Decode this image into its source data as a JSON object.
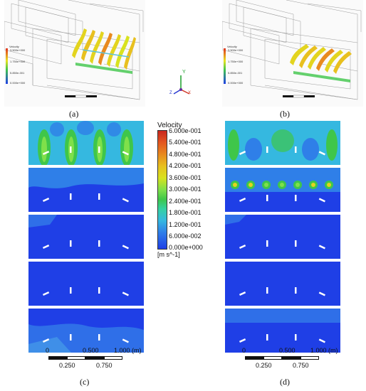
{
  "figure": {
    "panels": [
      {
        "id": "a",
        "label": "(a)"
      },
      {
        "id": "b",
        "label": "(b)"
      },
      {
        "id": "c",
        "label": "(c)"
      },
      {
        "id": "d",
        "label": "(d)"
      }
    ],
    "colorbar": {
      "title": "Velocity",
      "ticks": [
        "6.000e-001",
        "5.400e-001",
        "4.800e-001",
        "4.200e-001",
        "3.600e-001",
        "3.000e-001",
        "2.400e-001",
        "1.800e-001",
        "1.200e-001",
        "6.000e-002",
        "0.000e+000"
      ],
      "unit": "[m s^-1]"
    },
    "scale_bar": {
      "top_labels": [
        "0",
        "0.500",
        "1.000 (m)"
      ],
      "bottom_labels": [
        "0.250",
        "0.750"
      ]
    },
    "axis_triad": {
      "y": "Y",
      "x": "X",
      "z": "Z"
    },
    "small_legend": {
      "title": "Velocity",
      "ticks": [
        "3.500e+000",
        "1.750e+000",
        "5.850e-001",
        "0.000e+000"
      ]
    },
    "colors": {
      "low": "#1f3fe6",
      "mid": "#35d1d4",
      "green": "#3fc64a",
      "high": "#e8e31f",
      "max": "#e0331f"
    }
  }
}
